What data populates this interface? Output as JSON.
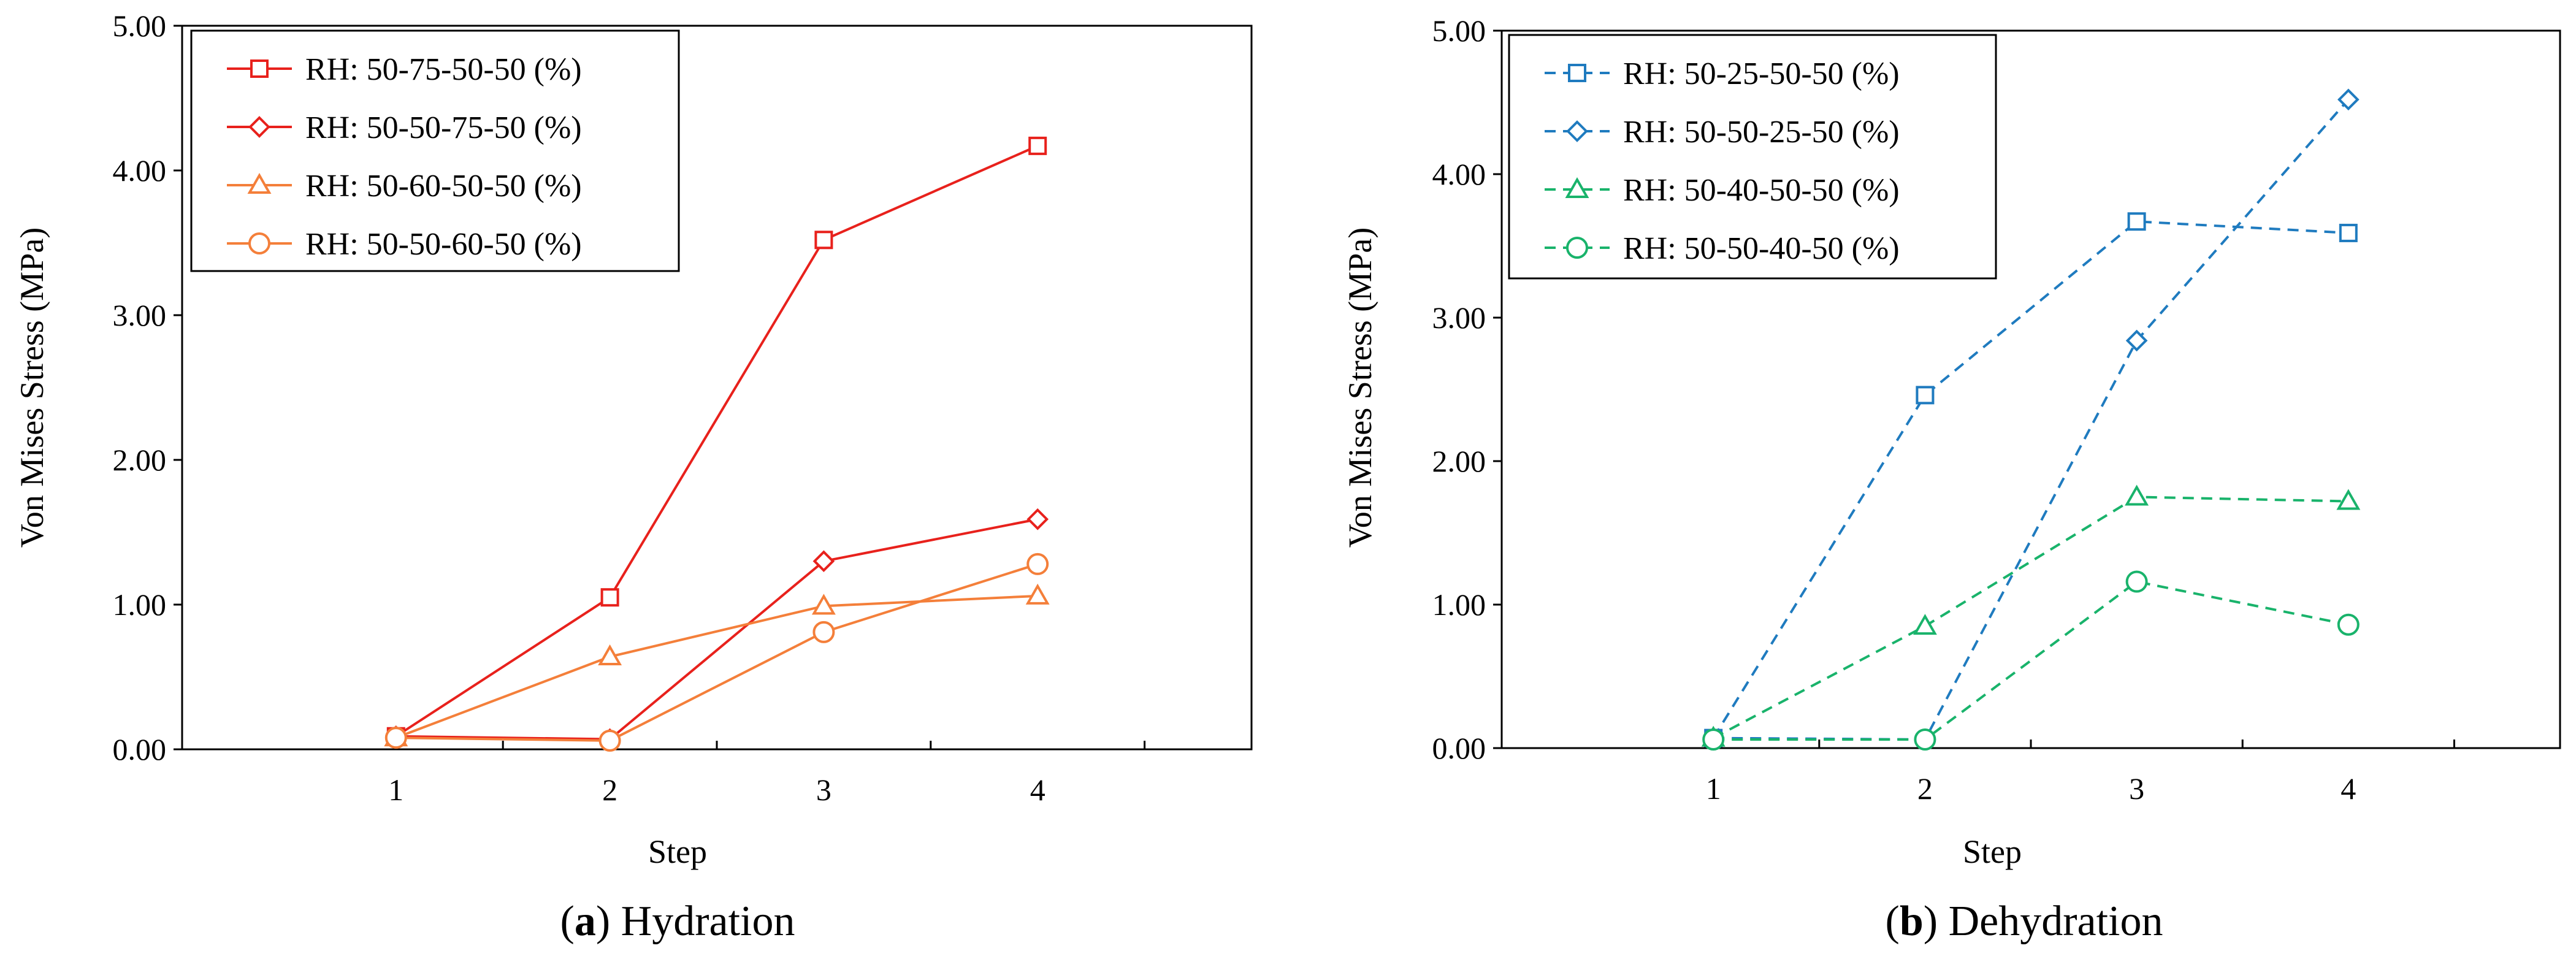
{
  "chart_data": [
    {
      "type": "line",
      "panel": "a",
      "caption_label": "a",
      "caption_title": "Hydration",
      "xlabel": "Step",
      "ylabel": "Von Mises Stress (MPa)",
      "x": [
        1,
        2,
        3,
        4
      ],
      "xlim": [
        0,
        5
      ],
      "ylim": [
        0,
        5
      ],
      "y_ticks": [
        "0.00",
        "1.00",
        "2.00",
        "3.00",
        "4.00",
        "5.00"
      ],
      "legend_position": "top-left",
      "series": [
        {
          "name": "RH: 50-75-50-50 (%)",
          "values": [
            0.09,
            1.05,
            3.52,
            4.17
          ],
          "color": "#e8211c",
          "marker": "square",
          "dash": "solid"
        },
        {
          "name": "RH: 50-50-75-50 (%)",
          "values": [
            0.09,
            0.07,
            1.3,
            1.59
          ],
          "color": "#e8211c",
          "marker": "diamond",
          "dash": "solid"
        },
        {
          "name": "RH: 50-60-50-50 (%)",
          "values": [
            0.08,
            0.64,
            0.99,
            1.06
          ],
          "color": "#f47f3a",
          "marker": "triangle",
          "dash": "solid"
        },
        {
          "name": "RH: 50-50-60-50 (%)",
          "values": [
            0.08,
            0.06,
            0.81,
            1.28
          ],
          "color": "#f47f3a",
          "marker": "circle",
          "dash": "solid"
        }
      ]
    },
    {
      "type": "line",
      "panel": "b",
      "caption_label": "b",
      "caption_title": "Dehydration",
      "xlabel": "Step",
      "ylabel": "Von Mises Stress (MPa)",
      "x": [
        1,
        2,
        3,
        4
      ],
      "xlim": [
        0,
        5
      ],
      "ylim": [
        0,
        5
      ],
      "y_ticks": [
        "0.00",
        "1.00",
        "2.00",
        "3.00",
        "4.00",
        "5.00"
      ],
      "legend_position": "top-left",
      "series": [
        {
          "name": "RH: 50-25-50-50 (%)",
          "values": [
            0.07,
            2.46,
            3.67,
            3.59
          ],
          "color": "#1f7bbf",
          "marker": "square",
          "dash": "dashed"
        },
        {
          "name": "RH: 50-50-25-50 (%)",
          "values": [
            0.07,
            0.06,
            2.84,
            4.52
          ],
          "color": "#1f7bbf",
          "marker": "diamond",
          "dash": "dashed"
        },
        {
          "name": "RH: 50-40-50-50 (%)",
          "values": [
            0.07,
            0.85,
            1.75,
            1.72
          ],
          "color": "#19b36b",
          "marker": "triangle",
          "dash": "dashed"
        },
        {
          "name": "RH: 50-50-40-50 (%)",
          "values": [
            0.06,
            0.06,
            1.16,
            0.86
          ],
          "color": "#19b36b",
          "marker": "circle",
          "dash": "dashed"
        }
      ]
    }
  ]
}
